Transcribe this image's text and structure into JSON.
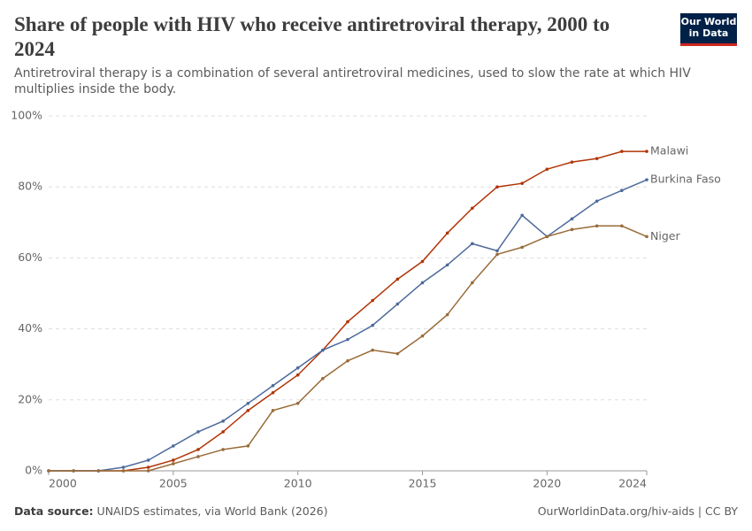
{
  "header": {
    "title": "Share of people with HIV who receive antiretroviral therapy, 2000 to 2024",
    "subtitle": "Antiretroviral therapy is a combination of several antiretroviral medicines, used to slow the rate at which HIV multiplies inside the body.",
    "logo": [
      "Our World",
      "in Data"
    ]
  },
  "chart_data": {
    "type": "line",
    "x": [
      2000,
      2001,
      2002,
      2003,
      2004,
      2005,
      2006,
      2007,
      2008,
      2009,
      2010,
      2011,
      2012,
      2013,
      2014,
      2015,
      2016,
      2017,
      2018,
      2019,
      2020,
      2021,
      2022,
      2023,
      2024
    ],
    "series": [
      {
        "name": "Malawi",
        "color": "#b13507",
        "values": [
          0,
          0,
          0,
          0,
          1,
          3,
          6,
          11,
          17,
          22,
          27,
          34,
          42,
          48,
          54,
          59,
          67,
          74,
          80,
          81,
          85,
          87,
          88,
          90,
          90
        ]
      },
      {
        "name": "Burkina Faso",
        "color": "#4c6a9c",
        "values": [
          0,
          0,
          0,
          1,
          3,
          7,
          11,
          14,
          19,
          24,
          29,
          34,
          37,
          41,
          47,
          53,
          58,
          64,
          62,
          72,
          66,
          71,
          76,
          79,
          82
        ]
      },
      {
        "name": "Niger",
        "color": "#9a6c3a",
        "values": [
          0,
          0,
          0,
          0,
          0,
          2,
          4,
          6,
          7,
          17,
          19,
          26,
          31,
          34,
          33,
          38,
          44,
          53,
          61,
          63,
          66,
          68,
          69,
          69,
          66
        ]
      }
    ],
    "xlim": [
      2000,
      2024
    ],
    "xticks": [
      2000,
      2005,
      2010,
      2015,
      2020,
      2024
    ],
    "ylim": [
      0,
      100
    ],
    "yticks": [
      {
        "value": 0,
        "label": "0%"
      },
      {
        "value": 20,
        "label": "20%"
      },
      {
        "value": 40,
        "label": "40%"
      },
      {
        "value": 60,
        "label": "60%"
      },
      {
        "value": 80,
        "label": "80%"
      },
      {
        "value": 100,
        "label": "100%"
      }
    ],
    "grid": true
  },
  "footer": {
    "source_label": "Data source:",
    "source": "UNAIDS estimates, via World Bank (2026)",
    "url": "OurWorldinData.org/hiv-aids | CC BY"
  }
}
